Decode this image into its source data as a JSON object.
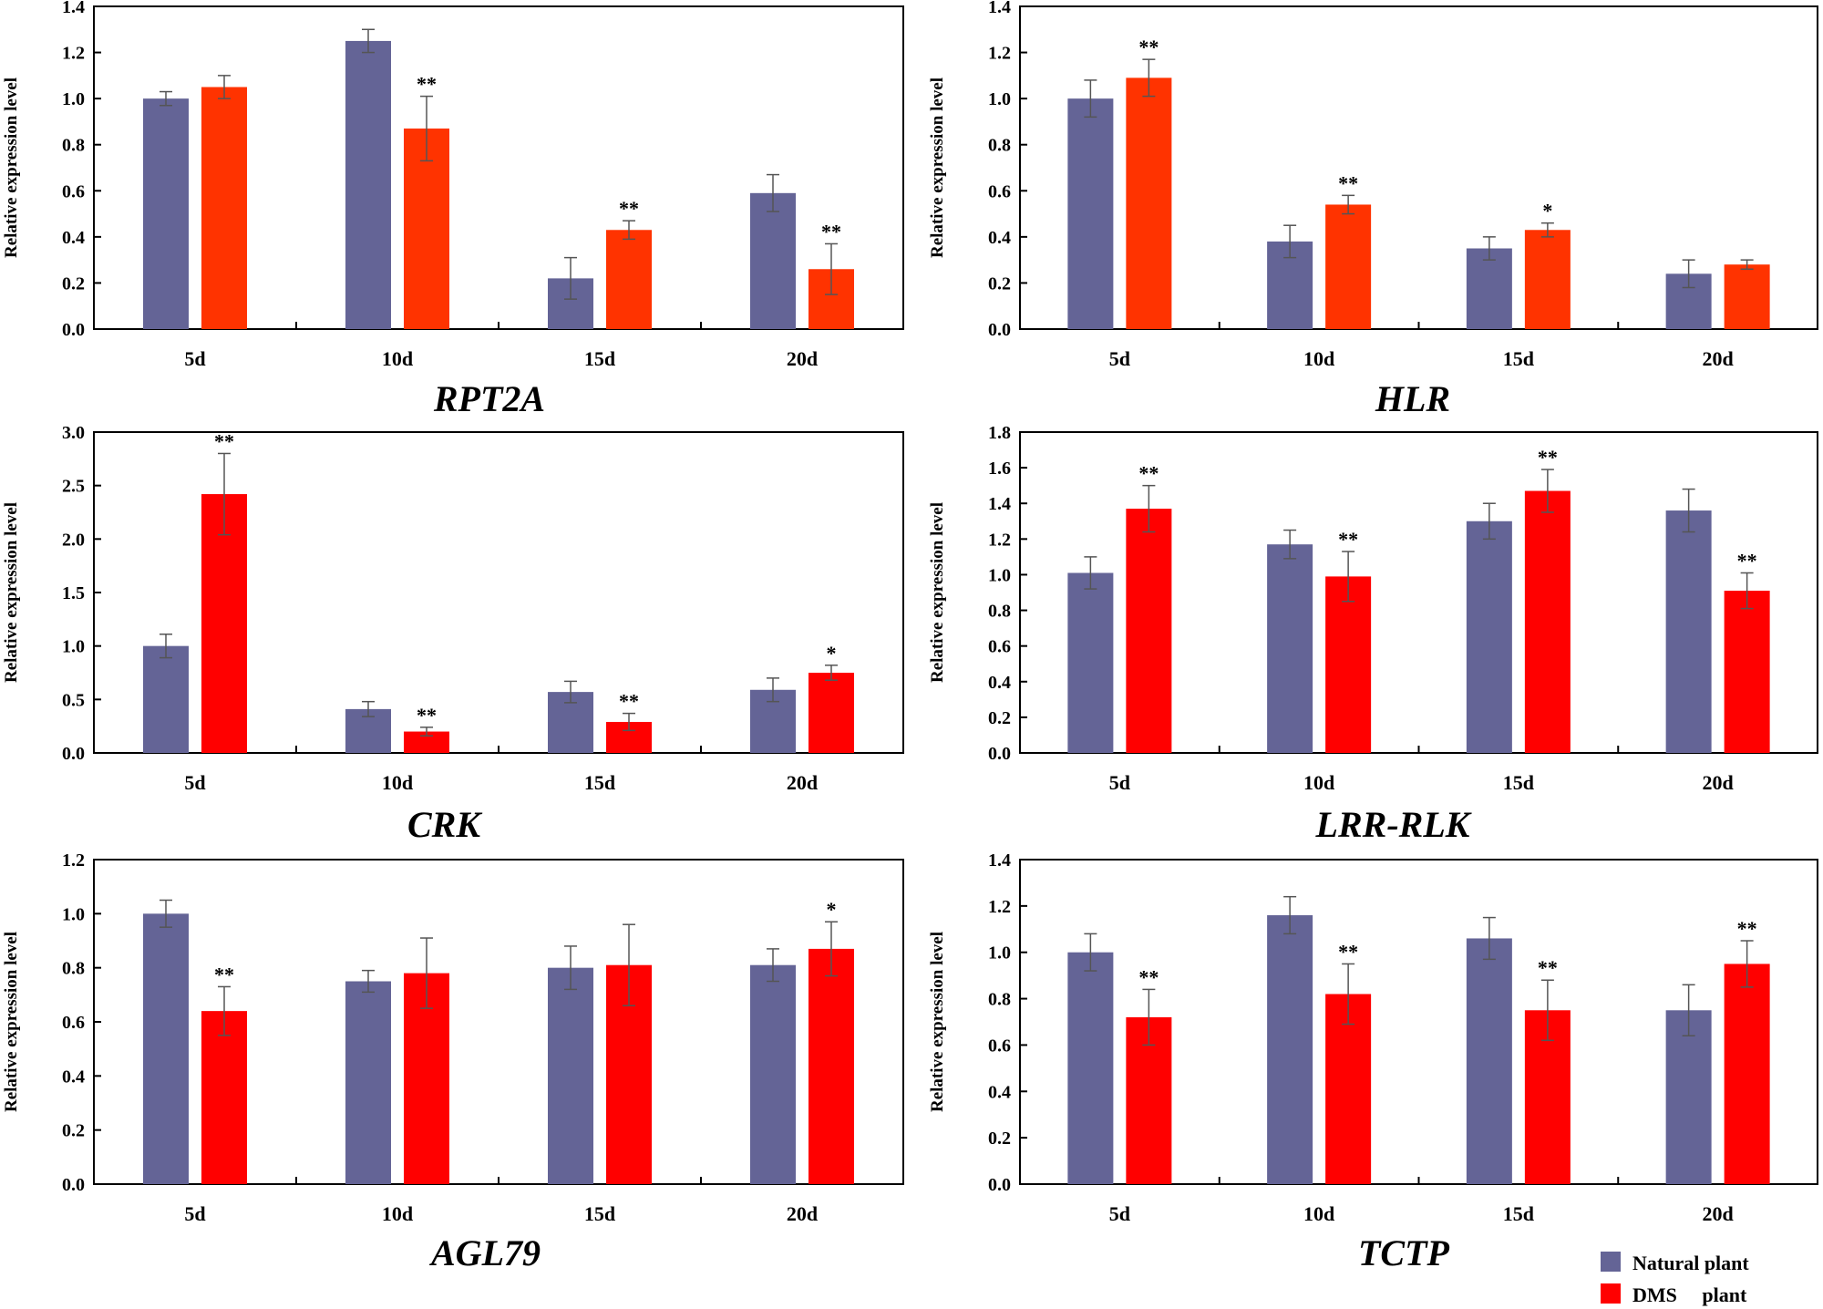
{
  "figure": {
    "legend": [
      {
        "label": "Natural plant",
        "color": "#646496"
      },
      {
        "label": "DMS     plant",
        "color": "#ff0000"
      }
    ]
  },
  "chart_data": [
    {
      "type": "bar",
      "title": "RPT2A",
      "ylabel": "Relative expression level",
      "categories": [
        "5d",
        "10d",
        "15d",
        "20d"
      ],
      "ylim": [
        0,
        1.4
      ],
      "yticks": [
        "0.0",
        "0.2",
        "0.4",
        "0.6",
        "0.8",
        "1.0",
        "1.2",
        "1.4"
      ],
      "series": [
        {
          "name": "Natural plant",
          "color": "#646496",
          "values": [
            1.0,
            1.25,
            0.22,
            0.59
          ],
          "errors": [
            0.03,
            0.05,
            0.09,
            0.08
          ],
          "sig": [
            "",
            "",
            "",
            ""
          ]
        },
        {
          "name": "DMS plant",
          "color": "#ff3300",
          "values": [
            1.05,
            0.87,
            0.43,
            0.26
          ],
          "errors": [
            0.05,
            0.14,
            0.04,
            0.11
          ],
          "sig": [
            "",
            "**",
            "**",
            "**"
          ]
        }
      ]
    },
    {
      "type": "bar",
      "title": "HLR",
      "ylabel": "Relative expression level",
      "categories": [
        "5d",
        "10d",
        "15d",
        "20d"
      ],
      "ylim": [
        0,
        1.4
      ],
      "yticks": [
        "0.0",
        "0.2",
        "0.4",
        "0.6",
        "0.8",
        "1.0",
        "1.2",
        "1.4"
      ],
      "series": [
        {
          "name": "Natural plant",
          "color": "#646496",
          "values": [
            1.0,
            0.38,
            0.35,
            0.24
          ],
          "errors": [
            0.08,
            0.07,
            0.05,
            0.06
          ],
          "sig": [
            "",
            "",
            "",
            ""
          ]
        },
        {
          "name": "DMS plant",
          "color": "#ff3300",
          "values": [
            1.09,
            0.54,
            0.43,
            0.28
          ],
          "errors": [
            0.08,
            0.04,
            0.03,
            0.02
          ],
          "sig": [
            "**",
            "**",
            "*",
            ""
          ]
        }
      ]
    },
    {
      "type": "bar",
      "title": "CRK",
      "ylabel": "Relative expression level",
      "categories": [
        "5d",
        "10d",
        "15d",
        "20d"
      ],
      "ylim": [
        0,
        3.0
      ],
      "yticks": [
        "0.0",
        "0.5",
        "1.0",
        "1.5",
        "2.0",
        "2.5",
        "3.0"
      ],
      "series": [
        {
          "name": "Natural plant",
          "color": "#646496",
          "values": [
            1.0,
            0.41,
            0.57,
            0.59
          ],
          "errors": [
            0.11,
            0.07,
            0.1,
            0.11
          ],
          "sig": [
            "",
            "",
            "",
            ""
          ]
        },
        {
          "name": "DMS plant",
          "color": "#ff0000",
          "values": [
            2.42,
            0.2,
            0.29,
            0.75
          ],
          "errors": [
            0.38,
            0.04,
            0.08,
            0.07
          ],
          "sig": [
            "**",
            "**",
            "**",
            "*"
          ]
        }
      ]
    },
    {
      "type": "bar",
      "title": "LRR-RLK",
      "ylabel": "Relative expression level",
      "categories": [
        "5d",
        "10d",
        "15d",
        "20d"
      ],
      "ylim": [
        0,
        1.8
      ],
      "yticks": [
        "0.0",
        "0.2",
        "0.4",
        "0.6",
        "0.8",
        "1.0",
        "1.2",
        "1.4",
        "1.6",
        "1.8"
      ],
      "series": [
        {
          "name": "Natural plant",
          "color": "#646496",
          "values": [
            1.01,
            1.17,
            1.3,
            1.36
          ],
          "errors": [
            0.09,
            0.08,
            0.1,
            0.12
          ],
          "sig": [
            "",
            "",
            "",
            ""
          ]
        },
        {
          "name": "DMS plant",
          "color": "#ff0000",
          "values": [
            1.37,
            0.99,
            1.47,
            0.91
          ],
          "errors": [
            0.13,
            0.14,
            0.12,
            0.1
          ],
          "sig": [
            "**",
            "**",
            "**",
            "**"
          ]
        }
      ]
    },
    {
      "type": "bar",
      "title": "AGL79",
      "ylabel": "Relative expression level",
      "categories": [
        "5d",
        "10d",
        "15d",
        "20d"
      ],
      "ylim": [
        0,
        1.2
      ],
      "yticks": [
        "0.0",
        "0.2",
        "0.4",
        "0.6",
        "0.8",
        "1.0",
        "1.2"
      ],
      "series": [
        {
          "name": "Natural plant",
          "color": "#646496",
          "values": [
            1.0,
            0.75,
            0.8,
            0.81
          ],
          "errors": [
            0.05,
            0.04,
            0.08,
            0.06
          ],
          "sig": [
            "",
            "",
            "",
            ""
          ]
        },
        {
          "name": "DMS plant",
          "color": "#ff0000",
          "values": [
            0.64,
            0.78,
            0.81,
            0.87
          ],
          "errors": [
            0.09,
            0.13,
            0.15,
            0.1
          ],
          "sig": [
            "**",
            "",
            "",
            "*"
          ]
        }
      ]
    },
    {
      "type": "bar",
      "title": "TCTP",
      "ylabel": "Relative expression level",
      "categories": [
        "5d",
        "10d",
        "15d",
        "20d"
      ],
      "ylim": [
        0,
        1.4
      ],
      "yticks": [
        "0.0",
        "0.2",
        "0.4",
        "0.6",
        "0.8",
        "1.0",
        "1.2",
        "1.4"
      ],
      "series": [
        {
          "name": "Natural plant",
          "color": "#646496",
          "values": [
            1.0,
            1.16,
            1.06,
            0.75
          ],
          "errors": [
            0.08,
            0.08,
            0.09,
            0.11
          ],
          "sig": [
            "",
            "",
            "",
            ""
          ]
        },
        {
          "name": "DMS plant",
          "color": "#ff0000",
          "values": [
            0.72,
            0.82,
            0.75,
            0.95
          ],
          "errors": [
            0.12,
            0.13,
            0.13,
            0.1
          ],
          "sig": [
            "**",
            "**",
            "**",
            "**"
          ]
        }
      ]
    }
  ]
}
